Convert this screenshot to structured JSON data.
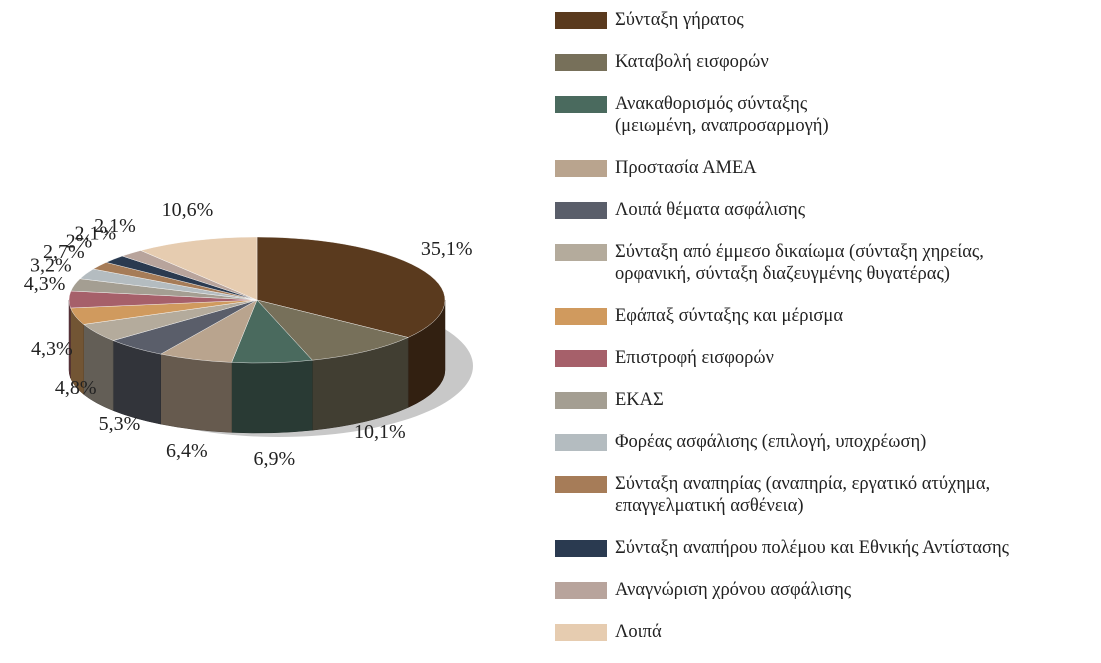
{
  "chart_data": {
    "type": "pie3d",
    "categories": [
      "Σύνταξη γήρατος",
      "Καταβολή εισφορών",
      "Ανακαθορισμός σύνταξης\n(μειωμένη, αναπροσαρμογή)",
      "Προστασία ΑΜΕΑ",
      "Λοιπά θέματα ασφάλισης",
      "Σύνταξη από έμμεσο δικαίωμα (σύνταξη χηρείας,\nορφανική, σύνταξη διαζευγμένης θυγατέρας)",
      "Εφάπαξ σύνταξης και μέρισμα",
      "Επιστροφή εισφορών",
      "ΕΚΑΣ",
      "Φορέας ασφάλισης (επιλογή, υποχρέωση)",
      "Σύνταξη αναπηρίας (αναπηρία, εργατικό ατύχημα,\nεπαγγελματική ασθένεια)",
      "Σύνταξη αναπήρου πολέμου και Εθνικής Αντίστασης",
      "Αναγνώριση χρόνου ασφάλισης",
      "Λοιπά"
    ],
    "values": [
      35.1,
      10.1,
      6.9,
      6.4,
      5.3,
      4.8,
      4.3,
      4.3,
      3.2,
      2.7,
      2,
      2.1,
      2.1,
      10.6
    ],
    "value_labels": [
      "35,1%",
      "10,1%",
      "6,9%",
      "6,4%",
      "5,3%",
      "4,8%",
      "4,3%",
      "4,3%",
      "3,2%",
      "2,7%",
      "2%",
      "2,1%",
      "2,1%",
      "10,6%"
    ],
    "colors": [
      "#5a3a1e",
      "#77705a",
      "#4a6a5e",
      "#b9a48e",
      "#5a5e6a",
      "#b4ab9c",
      "#d09a5e",
      "#a6606a",
      "#a49e92",
      "#b4bcc0",
      "#a67c58",
      "#2a3a50",
      "#b8a49c",
      "#e6ccb0"
    ],
    "legend": "right"
  }
}
